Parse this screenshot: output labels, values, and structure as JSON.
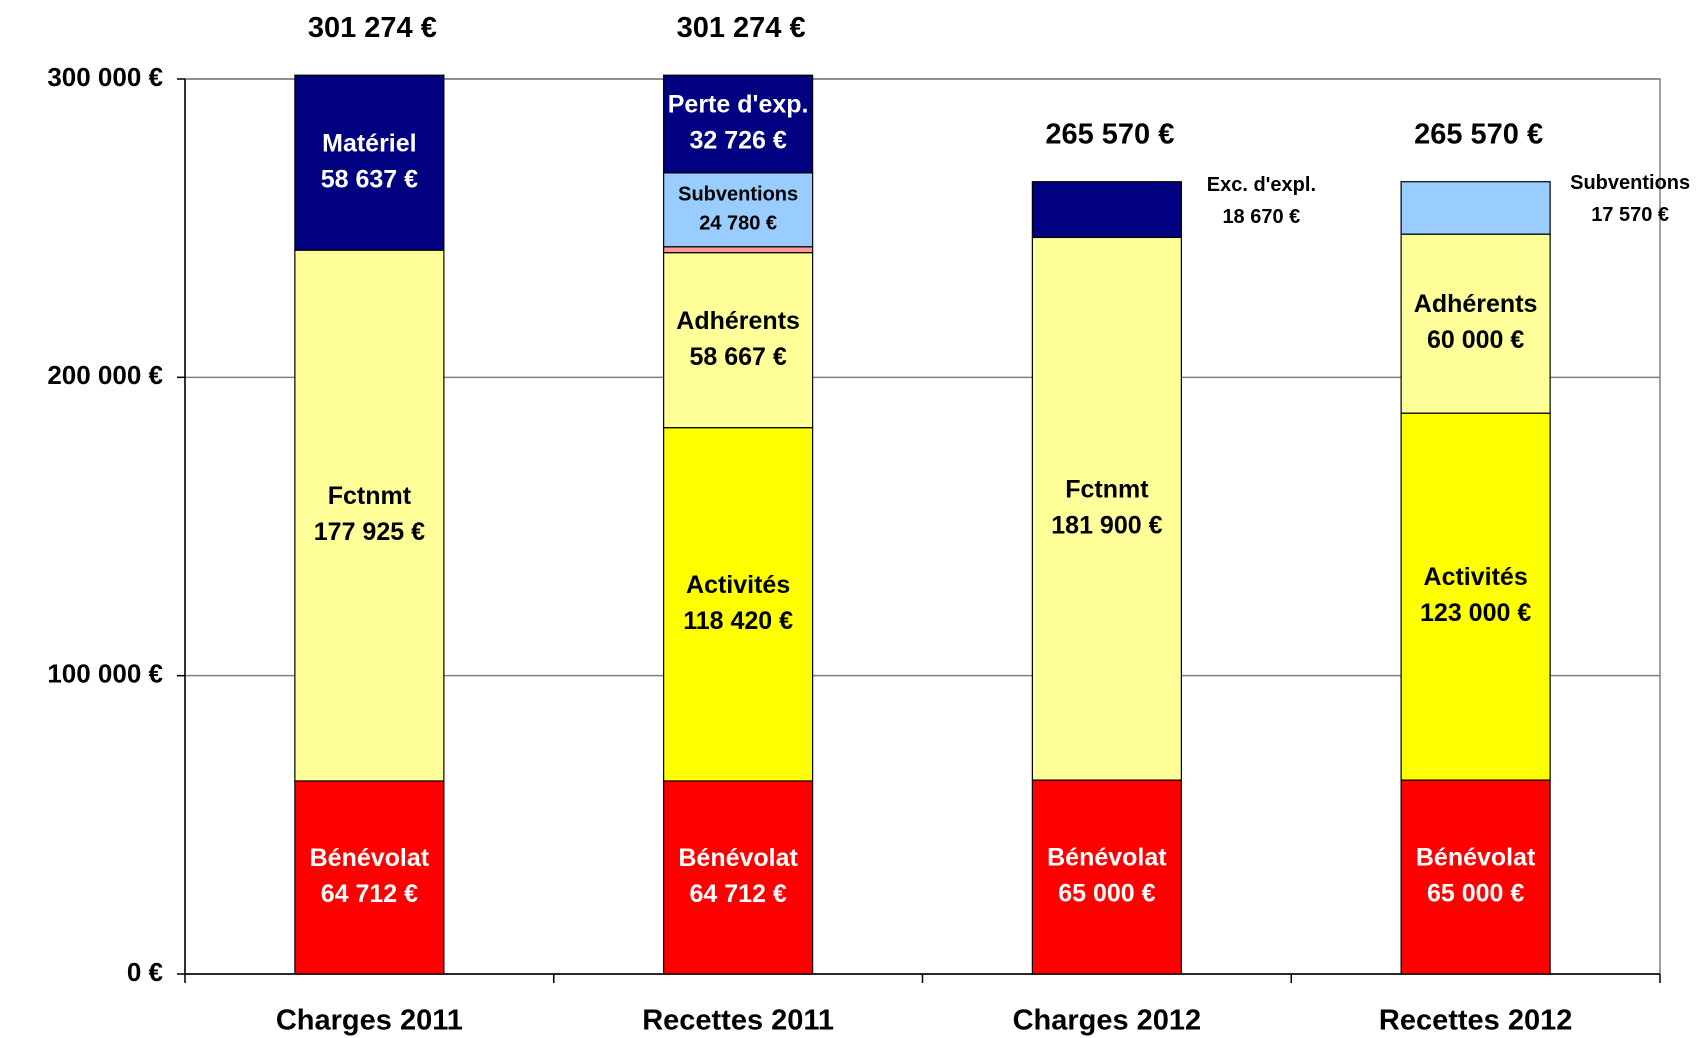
{
  "chart_data": {
    "type": "stacked_bar",
    "categories": [
      "Charges 2011",
      "Recettes 2011",
      "Charges 2012",
      "Recettes 2012"
    ],
    "series": [
      {
        "name": "Bénévolat",
        "color": "#ff0000",
        "values": [
          64712,
          64712,
          65000,
          65000
        ],
        "value_labels": [
          "64 712 €",
          "64 712 €",
          "65 000 €",
          "65 000 €"
        ]
      },
      {
        "name": "Fctnmt",
        "color": "#ffff99",
        "values": [
          177925,
          null,
          181900,
          null
        ],
        "value_labels": [
          "177 925 €",
          null,
          "181 900 €",
          null
        ]
      },
      {
        "name": "Activités",
        "color": "#ffff00",
        "values": [
          null,
          118420,
          null,
          123000
        ],
        "value_labels": [
          null,
          "118 420 €",
          null,
          "123 000 €"
        ]
      },
      {
        "name": "Adhérents",
        "color": "#ffff99",
        "values": [
          null,
          58667,
          null,
          60000
        ],
        "value_labels": [
          null,
          "58 667 €",
          null,
          "60 000 €"
        ]
      },
      {
        "color": "#ff9999",
        "values": [
          null,
          1969,
          null,
          null
        ]
      },
      {
        "name": "Subventions",
        "color": "#99ccff",
        "values": [
          null,
          24780,
          null,
          17570
        ],
        "value_labels": [
          null,
          "24 780 €",
          null,
          "17 570 €"
        ]
      },
      {
        "name": "Matériel",
        "color": "#000080",
        "values": [
          58637,
          null,
          null,
          null
        ],
        "value_labels": [
          "58 637 €",
          null,
          null,
          null
        ]
      },
      {
        "name": "Perte d'exp.",
        "color": "#000080",
        "values": [
          null,
          32726,
          null,
          null
        ],
        "value_labels": [
          null,
          "32 726 €",
          null,
          null
        ]
      },
      {
        "name": "Exc. d'expl.",
        "color": "#000080",
        "values": [
          null,
          null,
          18670,
          null
        ],
        "value_labels": [
          null,
          null,
          "18 670 €",
          null
        ]
      }
    ],
    "totals": [
      301274,
      301274,
      265570,
      265570
    ],
    "total_labels": [
      "301 274 €",
      "301 274 €",
      "265 570 €",
      "265 570 €"
    ],
    "ylim": [
      0,
      300000
    ],
    "yticks": [
      {
        "value": 0,
        "label": "0 €"
      },
      {
        "value": 100000,
        "label": "100 000 €"
      },
      {
        "value": 200000,
        "label": "200 000 €"
      },
      {
        "value": 300000,
        "label": "300 000 €"
      }
    ],
    "grid": true
  }
}
